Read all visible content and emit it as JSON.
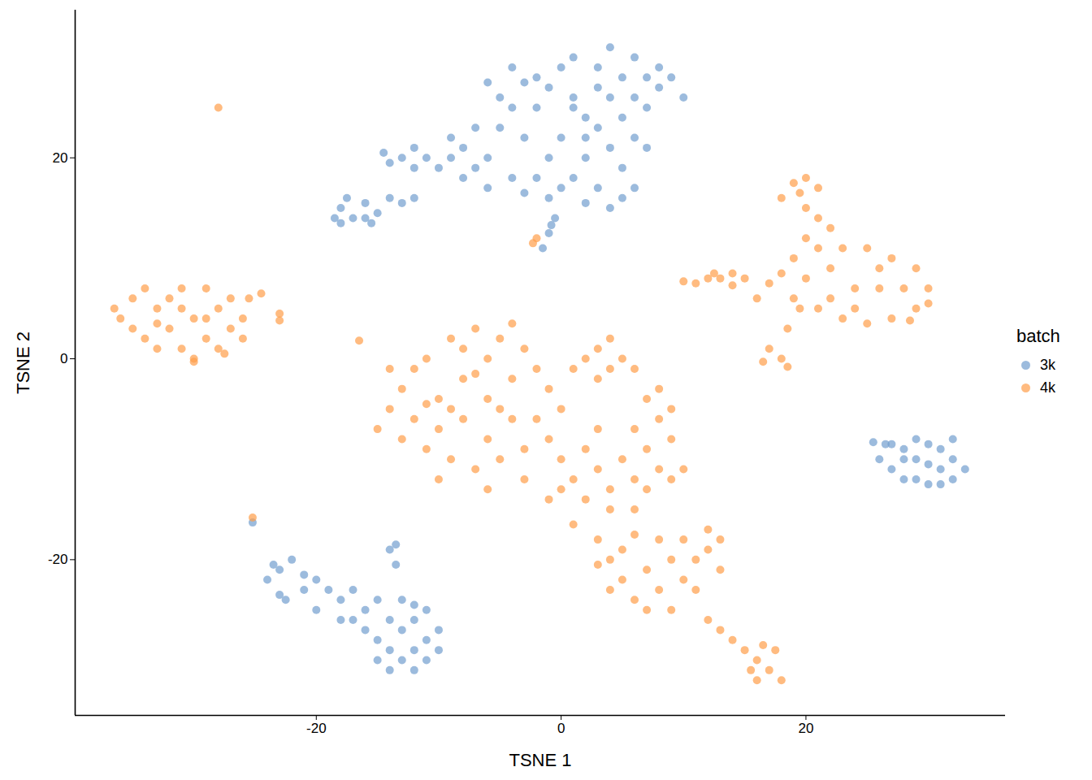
{
  "chart_data": {
    "type": "scatter",
    "xlabel": "TSNE 1",
    "ylabel": "TSNE 2",
    "xlim": [
      -39.7,
      36.3
    ],
    "ylim": [
      -35.5,
      34.7
    ],
    "xticks": [
      -20,
      0,
      20
    ],
    "yticks": [
      -20,
      0,
      20
    ],
    "grid": false,
    "legend": "right",
    "legend_title": "batch",
    "series": [
      {
        "name": "3k",
        "color": "#729ece",
        "marker": "circle",
        "values": [
          [
            2,
            24
          ],
          [
            0,
            22
          ],
          [
            4,
            26
          ],
          [
            -1,
            27
          ],
          [
            3,
            29
          ],
          [
            5,
            28
          ],
          [
            1,
            30
          ],
          [
            6,
            30
          ],
          [
            7,
            28
          ],
          [
            8,
            27
          ],
          [
            -2,
            25
          ],
          [
            -1,
            20
          ],
          [
            1,
            18
          ],
          [
            3,
            17
          ],
          [
            5,
            19
          ],
          [
            6,
            22
          ],
          [
            7,
            25
          ],
          [
            4,
            21
          ],
          [
            2,
            20
          ],
          [
            0,
            17
          ],
          [
            -2,
            18
          ],
          [
            -1,
            16
          ],
          [
            2,
            15.5
          ],
          [
            4,
            15
          ],
          [
            6,
            17
          ],
          [
            5,
            24
          ],
          [
            3,
            23
          ],
          [
            1,
            26
          ],
          [
            -3,
            22
          ],
          [
            -2,
            28
          ],
          [
            0,
            29
          ],
          [
            4,
            31
          ],
          [
            6,
            26
          ],
          [
            8,
            29
          ],
          [
            9,
            28
          ],
          [
            7,
            21
          ],
          [
            5,
            16
          ],
          [
            -0.5,
            14
          ],
          [
            -1,
            12.5
          ],
          [
            1,
            25
          ],
          [
            3,
            27
          ],
          [
            2,
            22
          ],
          [
            -1.5,
            11
          ],
          [
            -0.8,
            13.3
          ],
          [
            -4,
            25
          ],
          [
            -5,
            23
          ],
          [
            -6,
            20
          ],
          [
            -7,
            19
          ],
          [
            -8,
            21
          ],
          [
            -9,
            20
          ],
          [
            -10,
            19
          ],
          [
            -11,
            20
          ],
          [
            -12,
            21
          ],
          [
            -13,
            20
          ],
          [
            -14,
            19.5
          ],
          [
            -14.5,
            20.5
          ],
          [
            -12,
            19
          ],
          [
            -8,
            18
          ],
          [
            -6,
            17
          ],
          [
            -4,
            18
          ],
          [
            -3,
            16.5
          ],
          [
            -9,
            22
          ],
          [
            -7,
            23
          ],
          [
            -5,
            26
          ],
          [
            -6,
            27.5
          ],
          [
            -3,
            27.5
          ],
          [
            -4,
            29
          ],
          [
            -18,
            15
          ],
          [
            -17,
            14
          ],
          [
            -16,
            15.5
          ],
          [
            -15,
            14.5
          ],
          [
            -18.5,
            14
          ],
          [
            -17.5,
            16
          ],
          [
            -16,
            14
          ],
          [
            -14,
            16
          ],
          [
            -12,
            16
          ],
          [
            -13,
            15.5
          ],
          [
            -15.5,
            13.5
          ],
          [
            -18,
            13.5
          ],
          [
            10,
            26
          ],
          [
            -23,
            -21
          ],
          [
            -22,
            -20
          ],
          [
            -21,
            -21.5
          ],
          [
            -24,
            -22
          ],
          [
            -23,
            -23.5
          ],
          [
            -21,
            -23
          ],
          [
            -20,
            -22
          ],
          [
            -22.5,
            -24
          ],
          [
            -19,
            -23
          ],
          [
            -18,
            -24
          ],
          [
            -17,
            -23
          ],
          [
            -16,
            -25
          ],
          [
            -15,
            -24
          ],
          [
            -14,
            -26
          ],
          [
            -13,
            -27
          ],
          [
            -12,
            -26
          ],
          [
            -11,
            -25
          ],
          [
            -10,
            -27
          ],
          [
            -11,
            -28
          ],
          [
            -12,
            -29
          ],
          [
            -13,
            -30
          ],
          [
            -14,
            -29
          ],
          [
            -15,
            -28
          ],
          [
            -16,
            -27
          ],
          [
            -17,
            -26
          ],
          [
            -10,
            -29
          ],
          [
            -12,
            -31
          ],
          [
            -14,
            -31
          ],
          [
            -18,
            -26
          ],
          [
            -13,
            -24
          ],
          [
            -14,
            -19
          ],
          [
            -13.5,
            -20.5
          ],
          [
            -13.5,
            -18.5
          ],
          [
            -20,
            -25
          ],
          [
            -23.5,
            -20.5
          ],
          [
            -12,
            -24.5
          ],
          [
            -11,
            -30
          ],
          [
            -15,
            -30
          ],
          [
            27,
            -8.5
          ],
          [
            28,
            -9
          ],
          [
            29,
            -8
          ],
          [
            30,
            -8.5
          ],
          [
            31,
            -9
          ],
          [
            32,
            -10
          ],
          [
            33,
            -11
          ],
          [
            32,
            -12
          ],
          [
            30,
            -12.5
          ],
          [
            28,
            -12
          ],
          [
            27,
            -11
          ],
          [
            26,
            -10
          ],
          [
            29,
            -10
          ],
          [
            31,
            -11
          ],
          [
            30,
            -10.5
          ],
          [
            28,
            -10
          ],
          [
            26.5,
            -8.5
          ],
          [
            32,
            -8
          ],
          [
            29,
            -12
          ],
          [
            31,
            -12.5
          ],
          [
            25.5,
            -8.3
          ],
          [
            -25.2,
            -16.3
          ]
        ]
      },
      {
        "name": "4k",
        "color": "#ff9e4a",
        "marker": "circle",
        "values": [
          [
            -36,
            4
          ],
          [
            -35,
            6
          ],
          [
            -34,
            2
          ],
          [
            -33,
            5
          ],
          [
            -32,
            3
          ],
          [
            -31,
            7
          ],
          [
            -30,
            4
          ],
          [
            -29,
            2
          ],
          [
            -28,
            5
          ],
          [
            -27,
            6
          ],
          [
            -26,
            4
          ],
          [
            -25.5,
            6
          ],
          [
            -26,
            2
          ],
          [
            -28,
            1
          ],
          [
            -30,
            0
          ],
          [
            -31,
            1
          ],
          [
            -33,
            1
          ],
          [
            -35,
            3
          ],
          [
            -34,
            7
          ],
          [
            -32,
            6
          ],
          [
            -29,
            7
          ],
          [
            -27,
            3
          ],
          [
            -36.5,
            5
          ],
          [
            -31,
            5
          ],
          [
            -29,
            4
          ],
          [
            -33,
            3.5
          ],
          [
            -24.5,
            6.5
          ],
          [
            -27.5,
            0.5
          ],
          [
            -30,
            -0.3
          ],
          [
            -23,
            4.5
          ],
          [
            -23,
            3.8
          ],
          [
            -16.5,
            1.8
          ],
          [
            -28,
            25
          ],
          [
            -25.2,
            -15.8
          ],
          [
            -2.3,
            11.5
          ],
          [
            -2,
            12
          ],
          [
            -6,
            -4
          ],
          [
            -8,
            -2
          ],
          [
            -10,
            -4
          ],
          [
            -12,
            -6
          ],
          [
            -13,
            -3
          ],
          [
            -11,
            0
          ],
          [
            -9,
            2
          ],
          [
            -7,
            3
          ],
          [
            -5,
            2
          ],
          [
            -3,
            1
          ],
          [
            -2,
            -1
          ],
          [
            -1,
            -3
          ],
          [
            -2,
            -6
          ],
          [
            -3,
            -9
          ],
          [
            -5,
            -10
          ],
          [
            -7,
            -11
          ],
          [
            -9,
            -10
          ],
          [
            -11,
            -9
          ],
          [
            -13,
            -8
          ],
          [
            -14,
            -5
          ],
          [
            -10,
            -7
          ],
          [
            -8,
            -6
          ],
          [
            -6,
            -8
          ],
          [
            -4,
            -6
          ],
          [
            -4,
            -2
          ],
          [
            -6,
            0
          ],
          [
            -8,
            1
          ],
          [
            -12,
            -1
          ],
          [
            -14,
            -1
          ],
          [
            -15,
            -7
          ],
          [
            -1,
            -8
          ],
          [
            0,
            -5
          ],
          [
            -3,
            -12
          ],
          [
            -6,
            -13
          ],
          [
            -10,
            -12
          ],
          [
            -4,
            3.5
          ],
          [
            -7,
            -1.5
          ],
          [
            -9,
            -5
          ],
          [
            -5,
            -5
          ],
          [
            -11,
            -4.5
          ],
          [
            2,
            0
          ],
          [
            3,
            1
          ],
          [
            4,
            2
          ],
          [
            5,
            0
          ],
          [
            6,
            -1
          ],
          [
            3,
            -2
          ],
          [
            1,
            -1
          ],
          [
            4,
            -1
          ],
          [
            7,
            -4
          ],
          [
            8,
            -6
          ],
          [
            9,
            -8
          ],
          [
            7,
            -9
          ],
          [
            8,
            -3
          ],
          [
            6,
            -7
          ],
          [
            9,
            -5
          ],
          [
            0,
            -10
          ],
          [
            1,
            -12
          ],
          [
            2,
            -9
          ],
          [
            3,
            -11
          ],
          [
            4,
            -13
          ],
          [
            5,
            -10
          ],
          [
            6,
            -12
          ],
          [
            7,
            -13
          ],
          [
            8,
            -11
          ],
          [
            9,
            -12
          ],
          [
            10,
            -11
          ],
          [
            2,
            -14
          ],
          [
            4,
            -15
          ],
          [
            0,
            -13
          ],
          [
            -1,
            -14
          ],
          [
            6,
            -15
          ],
          [
            3,
            -7
          ],
          [
            1,
            -16.5
          ],
          [
            3,
            -18
          ],
          [
            4,
            -20
          ],
          [
            5,
            -22
          ],
          [
            6,
            -24
          ],
          [
            7,
            -25
          ],
          [
            5,
            -19
          ],
          [
            7,
            -21
          ],
          [
            8,
            -23
          ],
          [
            9,
            -20
          ],
          [
            10,
            -18
          ],
          [
            11,
            -20
          ],
          [
            12,
            -19
          ],
          [
            13,
            -21
          ],
          [
            12,
            -17
          ],
          [
            10,
            -22
          ],
          [
            8,
            -18
          ],
          [
            6,
            -17.5
          ],
          [
            4,
            -23
          ],
          [
            9,
            -25
          ],
          [
            11,
            -23
          ],
          [
            13,
            -18
          ],
          [
            3,
            -20.5
          ],
          [
            12,
            -26
          ],
          [
            13,
            -27
          ],
          [
            14,
            -28
          ],
          [
            15,
            -29
          ],
          [
            16,
            -30
          ],
          [
            17,
            -31
          ],
          [
            16,
            -32
          ],
          [
            17.5,
            -29
          ],
          [
            18,
            -32
          ],
          [
            15.5,
            -31
          ],
          [
            16.5,
            -28.5
          ],
          [
            24,
            7
          ],
          [
            22,
            9
          ],
          [
            20,
            8
          ],
          [
            19,
            6
          ],
          [
            21,
            5
          ],
          [
            23,
            4
          ],
          [
            25,
            3.5
          ],
          [
            27,
            4
          ],
          [
            29,
            5
          ],
          [
            30,
            7
          ],
          [
            29,
            9
          ],
          [
            27,
            10
          ],
          [
            25,
            11
          ],
          [
            23,
            11
          ],
          [
            21,
            11
          ],
          [
            20,
            12
          ],
          [
            26,
            7
          ],
          [
            28,
            7
          ],
          [
            22,
            6
          ],
          [
            24,
            5
          ],
          [
            26,
            9
          ],
          [
            19,
            10
          ],
          [
            18,
            8.5
          ],
          [
            22,
            13
          ],
          [
            21,
            14
          ],
          [
            20,
            15
          ],
          [
            19.5,
            16.5
          ],
          [
            20,
            18
          ],
          [
            19,
            17.5
          ],
          [
            21,
            17
          ],
          [
            18,
            16
          ],
          [
            17,
            7.5
          ],
          [
            16,
            6
          ],
          [
            15,
            8
          ],
          [
            14,
            8.5
          ],
          [
            13,
            8
          ],
          [
            12,
            8
          ],
          [
            11,
            7.5
          ],
          [
            10,
            7.7
          ],
          [
            14,
            7.3
          ],
          [
            12.5,
            8.5
          ],
          [
            18.5,
            3
          ],
          [
            18,
            0
          ],
          [
            17,
            1
          ],
          [
            16.5,
            -0.3
          ],
          [
            18.5,
            -0.8
          ],
          [
            19.5,
            5
          ],
          [
            28.5,
            3.8
          ],
          [
            30,
            5.5
          ]
        ]
      }
    ]
  }
}
